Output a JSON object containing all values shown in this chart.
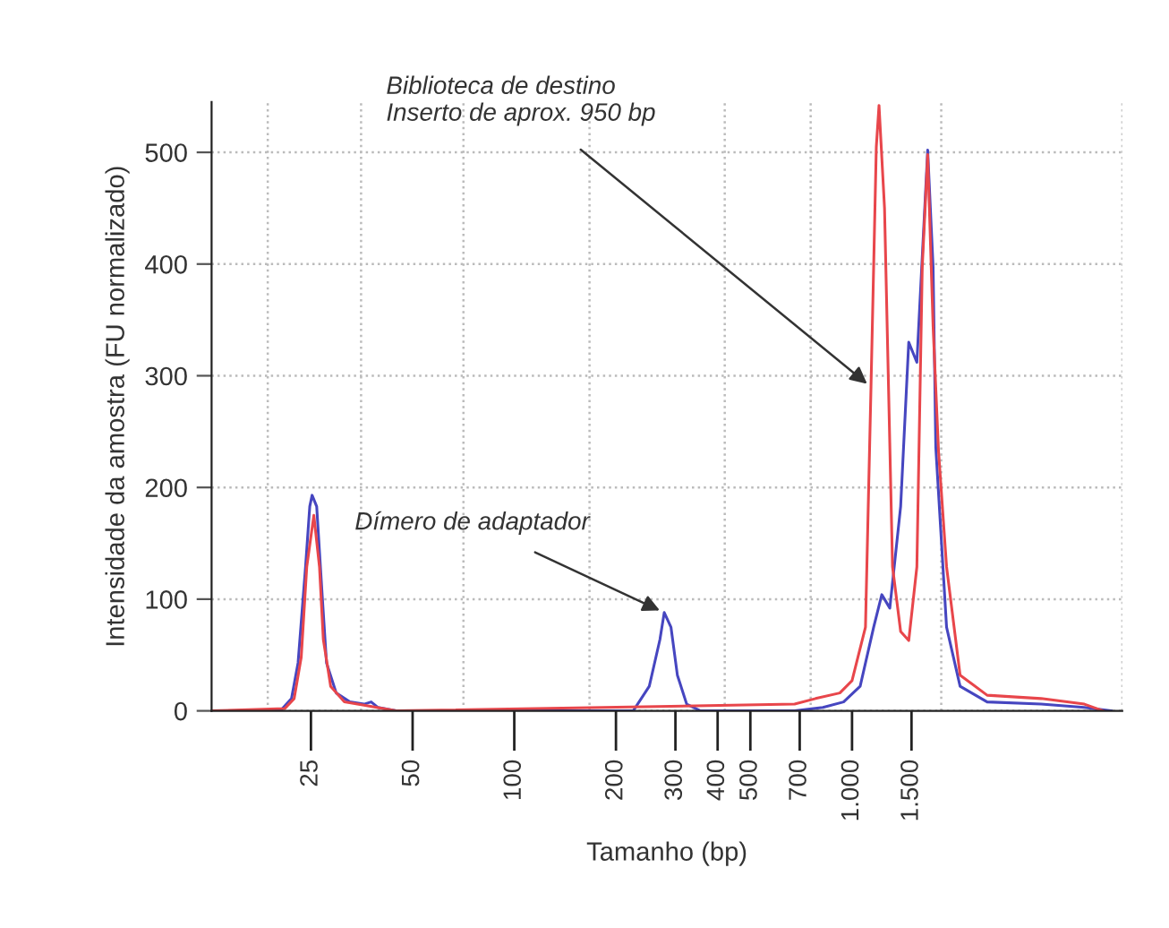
{
  "chart_data": {
    "type": "line",
    "xlabel": "Tamanho (bp)",
    "ylabel": "Intensidade da amostra (FU normalizado)",
    "xlim": [
      12.7,
      6310
    ],
    "ylim": [
      0,
      545
    ],
    "xticks": [
      25,
      50,
      100,
      200,
      300,
      400,
      500,
      700,
      {
        "value": 1000,
        "label": "1.000"
      },
      {
        "value": 1500,
        "label": "1.500"
      }
    ],
    "yticks": [
      0,
      100,
      200,
      300,
      400,
      500
    ],
    "log": "x",
    "grid": true,
    "legend": false,
    "line_style": "solid",
    "marker": "none",
    "series": [
      {
        "color": "#4646c0",
        "x": [
          12.7,
          20.3,
          21.9,
          22.9,
          24.1,
          24.8,
          25.2,
          26.0,
          27.0,
          27.8,
          29.7,
          32.6,
          35.9,
          37.7,
          39.5,
          44.7,
          225,
          251,
          270,
          278,
          291,
          304,
          324,
          356,
          676,
          820,
          944,
          1057,
          1159,
          1225,
          1294,
          1393,
          1472,
          1556,
          1675,
          1738,
          1770,
          1905,
          2089,
          2512,
          3631,
          4875,
          5861
        ],
        "values": [
          0,
          0,
          11,
          43,
          129,
          183,
          193,
          183,
          103,
          43,
          16,
          8,
          6,
          8,
          3,
          0,
          0,
          22,
          64,
          88,
          75,
          32,
          6,
          0,
          0,
          3,
          8,
          22,
          75,
          104,
          92,
          183,
          330,
          312,
          502,
          397,
          236,
          75,
          22,
          8,
          6,
          3,
          0
        ]
      },
      {
        "color": "#e8464b",
        "x": [
          12.7,
          20.9,
          22.3,
          23.4,
          24.3,
          25.5,
          26.5,
          27.2,
          28.6,
          31.4,
          35.9,
          44.7,
          676,
          780,
          920,
          1000,
          1096,
          1138,
          1180,
          1202,
          1248,
          1318,
          1393,
          1472,
          1556,
          1614,
          1675,
          1738,
          1803,
          1905,
          2089,
          2512,
          3631,
          4875,
          5546
        ],
        "values": [
          0,
          2,
          11,
          48,
          129,
          175,
          129,
          64,
          22,
          8,
          5,
          0,
          6,
          11,
          16,
          27,
          75,
          290,
          505,
          542,
          450,
          129,
          71,
          63,
          129,
          397,
          498,
          344,
          233,
          129,
          32,
          14,
          11,
          6,
          0
        ]
      }
    ],
    "annotations": [
      {
        "text": "Dímero de adaptador",
        "x": 278,
        "y": 88
      },
      {
        "text": "Biblioteca de destino\nInserto de aprox. 950 bp",
        "x": 1138,
        "y": 290
      }
    ]
  }
}
